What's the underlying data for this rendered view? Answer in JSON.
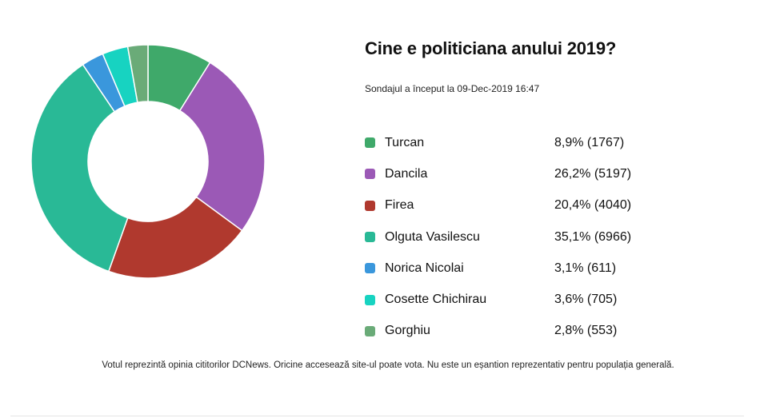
{
  "chart_data": {
    "type": "pie",
    "title": "Cine e politiciana anului 2019?",
    "subtitle": "Sondajul a început la 09-Dec-2019 16:47",
    "series": [
      {
        "name": "Turcan",
        "percent": 8.9,
        "votes": 1767,
        "label": "8,9% (1767)",
        "color": "#3fa96a"
      },
      {
        "name": "Dancila",
        "percent": 26.2,
        "votes": 5197,
        "label": "26,2% (5197)",
        "color": "#9b59b6"
      },
      {
        "name": "Firea",
        "percent": 20.4,
        "votes": 4040,
        "label": "20,4% (4040)",
        "color": "#b0392e"
      },
      {
        "name": "Olguta Vasilescu",
        "percent": 35.1,
        "votes": 6966,
        "label": "35,1% (6966)",
        "color": "#29b996"
      },
      {
        "name": "Norica Nicolai",
        "percent": 3.1,
        "votes": 611,
        "label": "3,1% (611)",
        "color": "#3a97dc"
      },
      {
        "name": "Cosette Chichirau",
        "percent": 3.6,
        "votes": 705,
        "label": "3,6% (705)",
        "color": "#17d3c1"
      },
      {
        "name": "Gorghiu",
        "percent": 2.8,
        "votes": 553,
        "label": "2,8% (553)",
        "color": "#6aab78"
      }
    ],
    "note": "Votul reprezintă opinia cititorilor DCNews. Oricine accesează site-ul poate vota. Nu este un eșantion reprezentativ pentru populația generală."
  }
}
